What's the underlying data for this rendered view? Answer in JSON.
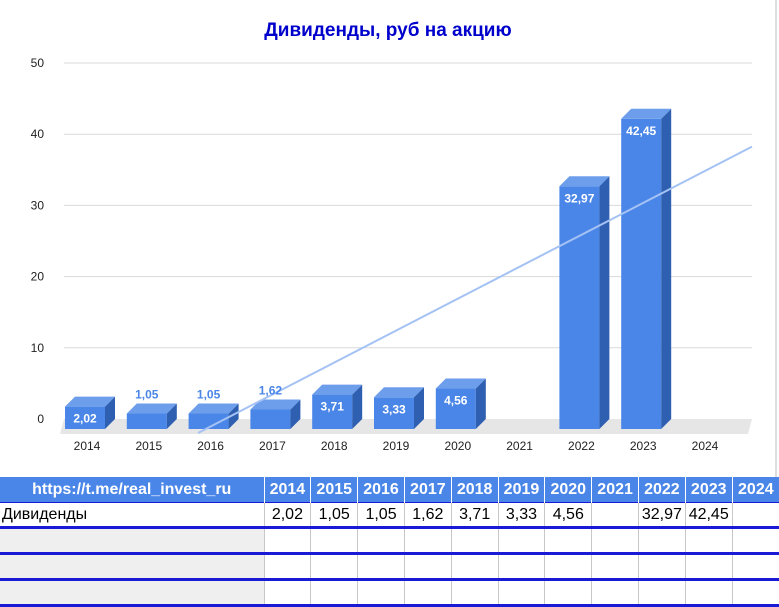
{
  "chart_data": {
    "type": "bar",
    "title": "Дивиденды, руб на акцию",
    "categories": [
      "2014",
      "2015",
      "2016",
      "2017",
      "2018",
      "2019",
      "2020",
      "2021",
      "2022",
      "2023",
      "2024"
    ],
    "values": [
      2.02,
      1.05,
      1.05,
      1.62,
      3.71,
      3.33,
      4.56,
      null,
      32.97,
      42.45,
      null
    ],
    "data_labels": [
      "2,02",
      "1,05",
      "1,05",
      "1,62",
      "3,71",
      "3,33",
      "4,56",
      "",
      "32,97",
      "42,45",
      ""
    ],
    "y_ticks": [
      "0",
      "10",
      "20",
      "30",
      "40",
      "50"
    ],
    "ylim": [
      0,
      50
    ],
    "xlabel": "",
    "ylabel": "",
    "grid": true,
    "legend": "none",
    "trendline": {
      "type": "linear",
      "color": "#a4c2f4"
    },
    "colors": {
      "bar": "#4a86e8",
      "bar_side": "#2e5fb0",
      "bar_top": "#6d9eeb",
      "title": "#0000cc"
    }
  },
  "table": {
    "header_label": "https://t.me/real_invest_ru",
    "years": [
      "2014",
      "2015",
      "2016",
      "2017",
      "2018",
      "2019",
      "2020",
      "2021",
      "2022",
      "2023",
      "2024"
    ],
    "row_label": "Дивиденды",
    "row_values": [
      "2,02",
      "1,05",
      "1,05",
      "1,62",
      "3,71",
      "3,33",
      "4,56",
      "",
      "32,97",
      "42,45",
      ""
    ]
  }
}
